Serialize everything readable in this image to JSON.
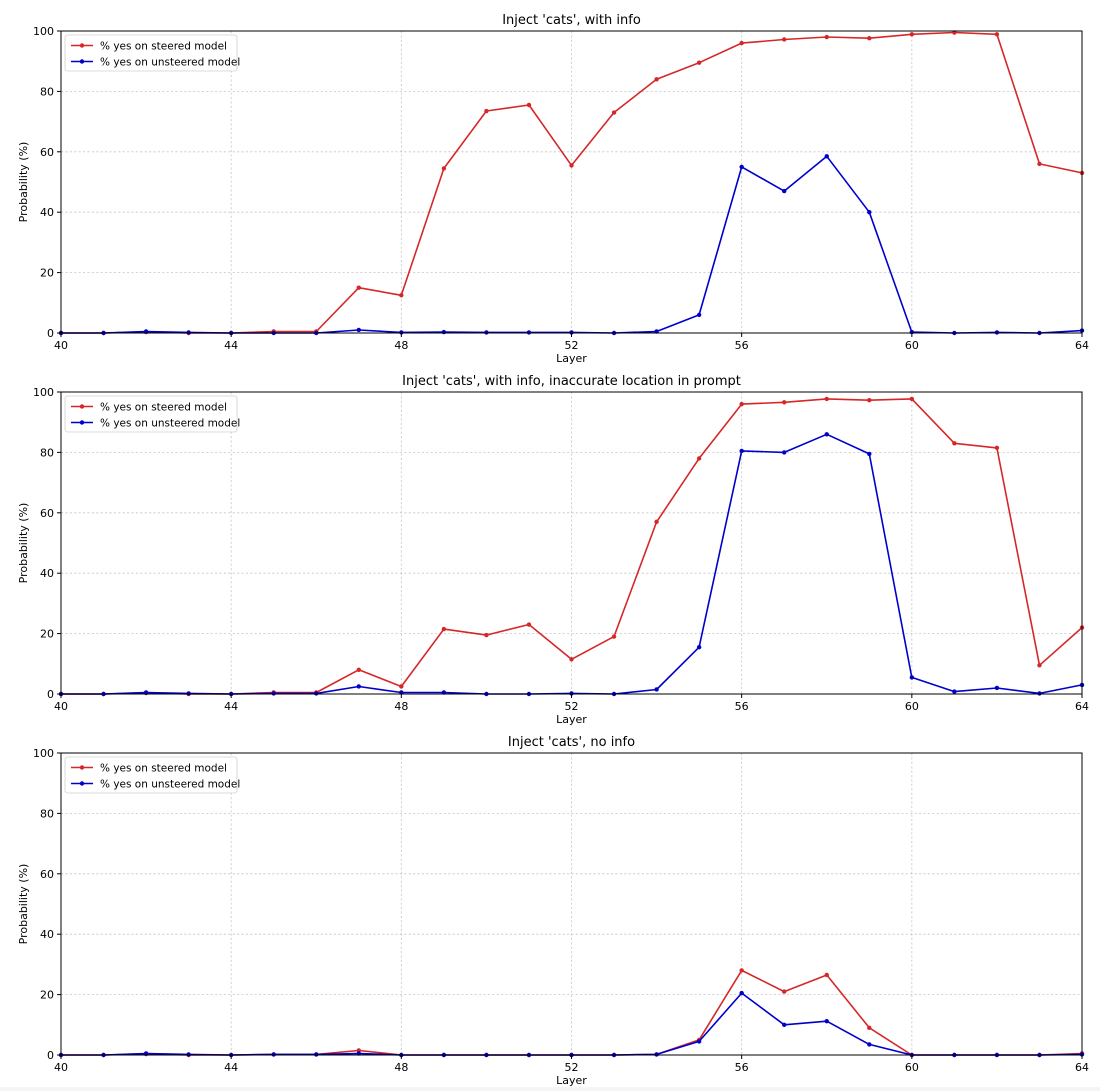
{
  "chart_data": [
    {
      "type": "line",
      "title": "Inject 'cats', with info",
      "xlabel": "Layer",
      "ylabel": "Probability (%)",
      "xlim": [
        40,
        64
      ],
      "ylim": [
        0,
        100
      ],
      "xticks": [
        40,
        44,
        48,
        52,
        56,
        60,
        64
      ],
      "yticks": [
        0,
        20,
        40,
        60,
        80,
        100
      ],
      "grid": true,
      "legend_position": "upper left",
      "x": [
        40,
        41,
        42,
        43,
        44,
        45,
        46,
        47,
        48,
        49,
        50,
        51,
        52,
        53,
        54,
        55,
        56,
        57,
        58,
        59,
        60,
        61,
        62,
        63,
        64
      ],
      "series": [
        {
          "name": "% yes on steered model",
          "color": "#d62728",
          "values": [
            0,
            0,
            0.3,
            0,
            0,
            0.5,
            0.5,
            15,
            12.5,
            54.5,
            73.5,
            75.5,
            55.5,
            73,
            84,
            89.5,
            96,
            97.2,
            98,
            97.6,
            98.9,
            99.5,
            98.9,
            56,
            53
          ]
        },
        {
          "name": "% yes on unsteered model",
          "color": "#0000cc",
          "values": [
            0,
            0,
            0.5,
            0.2,
            0,
            0,
            0,
            1,
            0.2,
            0.3,
            0.2,
            0.2,
            0.2,
            0,
            0.5,
            6,
            55,
            47,
            58.5,
            40,
            0.3,
            0,
            0.2,
            0,
            0.8
          ]
        }
      ]
    },
    {
      "type": "line",
      "title": "Inject 'cats', with info, inaccurate location in prompt",
      "xlabel": "Layer",
      "ylabel": "Probability (%)",
      "xlim": [
        40,
        64
      ],
      "ylim": [
        0,
        100
      ],
      "xticks": [
        40,
        44,
        48,
        52,
        56,
        60,
        64
      ],
      "yticks": [
        0,
        20,
        40,
        60,
        80,
        100
      ],
      "grid": true,
      "legend_position": "upper left",
      "x": [
        40,
        41,
        42,
        43,
        44,
        45,
        46,
        47,
        48,
        49,
        50,
        51,
        52,
        53,
        54,
        55,
        56,
        57,
        58,
        59,
        60,
        61,
        62,
        63,
        64
      ],
      "series": [
        {
          "name": "% yes on steered model",
          "color": "#d62728",
          "values": [
            0,
            0,
            0.3,
            0,
            0,
            0.5,
            0.5,
            8,
            2.5,
            21.5,
            19.5,
            23,
            11.5,
            19,
            57,
            78,
            96,
            96.6,
            97.7,
            97.3,
            97.7,
            83,
            81.5,
            9.5,
            22
          ]
        },
        {
          "name": "% yes on unsteered model",
          "color": "#0000cc",
          "values": [
            0,
            0,
            0.5,
            0.2,
            0,
            0.2,
            0.2,
            2.5,
            0.5,
            0.5,
            0,
            0,
            0.2,
            0,
            1.5,
            15.5,
            80.5,
            80,
            86,
            79.5,
            5.5,
            0.8,
            2,
            0.2,
            3
          ]
        }
      ]
    },
    {
      "type": "line",
      "title": "Inject 'cats', no info",
      "xlabel": "Layer",
      "ylabel": "Probability (%)",
      "xlim": [
        40,
        64
      ],
      "ylim": [
        0,
        100
      ],
      "xticks": [
        40,
        44,
        48,
        52,
        56,
        60,
        64
      ],
      "yticks": [
        0,
        20,
        40,
        60,
        80,
        100
      ],
      "grid": true,
      "legend_position": "upper left",
      "x": [
        40,
        41,
        42,
        43,
        44,
        45,
        46,
        47,
        48,
        49,
        50,
        51,
        52,
        53,
        54,
        55,
        56,
        57,
        58,
        59,
        60,
        61,
        62,
        63,
        64
      ],
      "series": [
        {
          "name": "% yes on steered model",
          "color": "#d62728",
          "values": [
            0,
            0,
            0.3,
            0,
            0,
            0.2,
            0.2,
            1.5,
            0,
            0,
            0,
            0,
            0,
            0,
            0.2,
            5,
            28,
            21,
            26.5,
            9,
            0,
            0,
            0,
            0,
            0.5
          ]
        },
        {
          "name": "% yes on unsteered model",
          "color": "#0000cc",
          "values": [
            0,
            0,
            0.5,
            0.2,
            0,
            0.2,
            0.2,
            0.5,
            0,
            0,
            0,
            0,
            0,
            0,
            0.2,
            4.5,
            20.5,
            10,
            11.2,
            3.5,
            0,
            0,
            0,
            0,
            0.2
          ]
        }
      ]
    }
  ]
}
